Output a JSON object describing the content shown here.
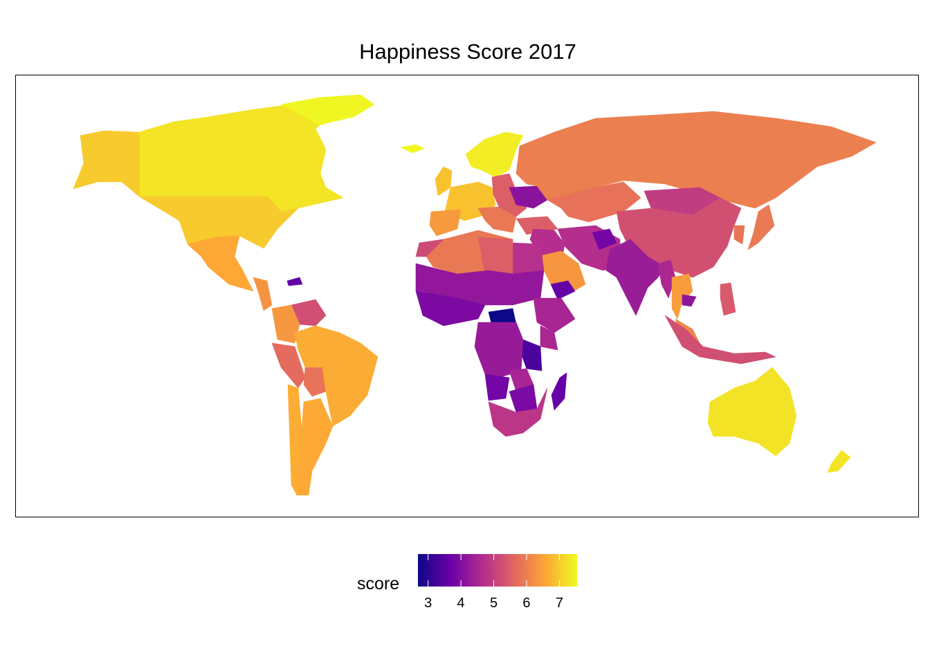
{
  "title": "Happiness Score 2017",
  "legend": {
    "title": "score",
    "ticks": [
      "3",
      "4",
      "5",
      "6",
      "7"
    ],
    "range": [
      2.69,
      7.54
    ],
    "palette": [
      "#0d0887",
      "#6a00a8",
      "#b12a90",
      "#e16462",
      "#fca636",
      "#f0f921"
    ]
  },
  "chart_data": {
    "type": "choropleth",
    "variable": "score",
    "projection": "equirectangular",
    "regions": [
      {
        "name": "Canada",
        "value": 7.3
      },
      {
        "name": "Alaska",
        "value": 6.99
      },
      {
        "name": "USA",
        "value": 6.99
      },
      {
        "name": "Greenland",
        "value": 7.5
      },
      {
        "name": "Mexico",
        "value": 6.58
      },
      {
        "name": "Central America",
        "value": 6.3
      },
      {
        "name": "Haiti",
        "value": 3.6
      },
      {
        "name": "Venezuela",
        "value": 5.25
      },
      {
        "name": "Colombia",
        "value": 6.36
      },
      {
        "name": "Peru",
        "value": 5.71
      },
      {
        "name": "Bolivia",
        "value": 5.82
      },
      {
        "name": "Brazil",
        "value": 6.64
      },
      {
        "name": "Argentina",
        "value": 6.6
      },
      {
        "name": "Chile",
        "value": 6.65
      },
      {
        "name": "Iceland",
        "value": 7.5
      },
      {
        "name": "Norway/Sweden/Finland",
        "value": 7.4
      },
      {
        "name": "UK/Ireland",
        "value": 6.9
      },
      {
        "name": "Western Europe",
        "value": 6.9
      },
      {
        "name": "Iberia",
        "value": 6.4
      },
      {
        "name": "Italy/Balkans",
        "value": 5.9
      },
      {
        "name": "Eastern Europe",
        "value": 5.5
      },
      {
        "name": "Ukraine",
        "value": 4.1
      },
      {
        "name": "Turkey",
        "value": 5.5
      },
      {
        "name": "Russia",
        "value": 6.0
      },
      {
        "name": "Kazakhstan",
        "value": 5.8
      },
      {
        "name": "Mongolia",
        "value": 4.95
      },
      {
        "name": "China",
        "value": 5.27
      },
      {
        "name": "Japan",
        "value": 5.92
      },
      {
        "name": "Korea",
        "value": 5.84
      },
      {
        "name": "Middle East",
        "value": 4.7
      },
      {
        "name": "Saudi Arabia",
        "value": 6.34
      },
      {
        "name": "Yemen",
        "value": 3.59
      },
      {
        "name": "Iran/Pakistan",
        "value": 4.69
      },
      {
        "name": "Afghanistan",
        "value": 3.79
      },
      {
        "name": "India",
        "value": 4.32
      },
      {
        "name": "Myanmar",
        "value": 4.55
      },
      {
        "name": "Thailand",
        "value": 6.42
      },
      {
        "name": "Cambodia",
        "value": 4.17
      },
      {
        "name": "Malaysia",
        "value": 6.08
      },
      {
        "name": "Indonesia",
        "value": 5.26
      },
      {
        "name": "Philippines",
        "value": 5.43
      },
      {
        "name": "Australia",
        "value": 7.28
      },
      {
        "name": "New Zealand",
        "value": 7.31
      },
      {
        "name": "Madagascar",
        "value": 3.64
      },
      {
        "name": "North Africa",
        "value": 5.9
      },
      {
        "name": "Morocco",
        "value": 5.2
      },
      {
        "name": "Egypt",
        "value": 4.74
      },
      {
        "name": "Libya",
        "value": 5.5
      },
      {
        "name": "Sahel",
        "value": 4.2
      },
      {
        "name": "West Africa coast",
        "value": 3.9
      },
      {
        "name": "Central African Republic",
        "value": 2.69
      },
      {
        "name": "Ethiopia/Horn",
        "value": 4.5
      },
      {
        "name": "Kenya",
        "value": 4.55
      },
      {
        "name": "Tanzania",
        "value": 3.35
      },
      {
        "name": "Congo region",
        "value": 4.28
      },
      {
        "name": "Angola",
        "value": 3.8
      },
      {
        "name": "Zambia",
        "value": 4.51
      },
      {
        "name": "Zimbabwe",
        "value": 3.88
      },
      {
        "name": "South Africa",
        "value": 4.83
      }
    ]
  }
}
